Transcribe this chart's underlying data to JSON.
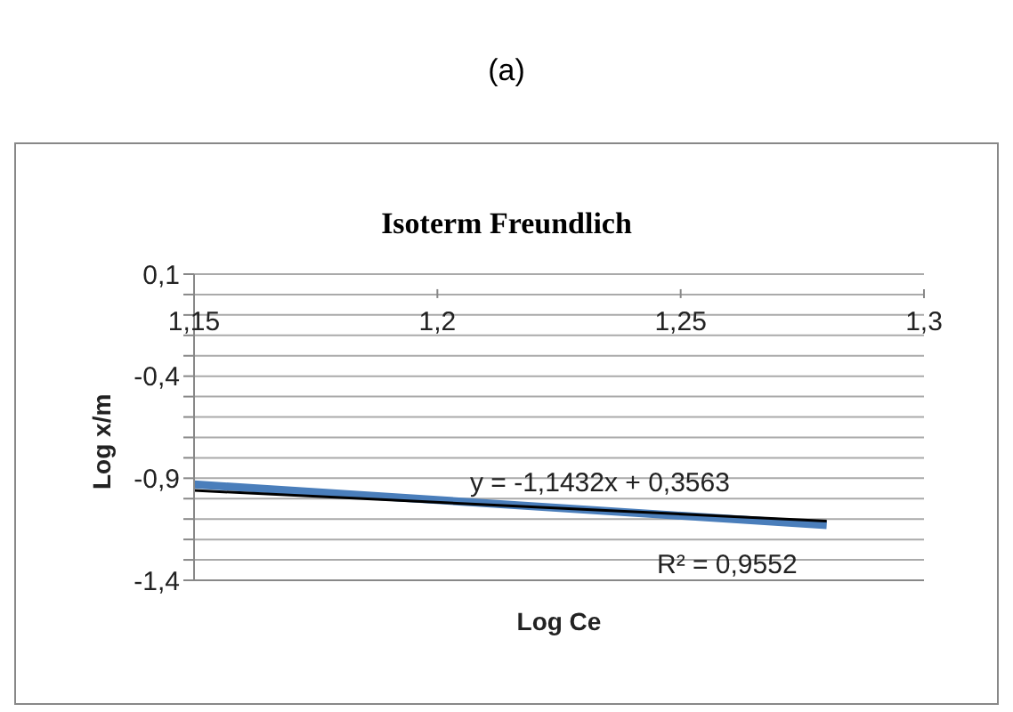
{
  "chart_data": {
    "type": "line",
    "title": "(a)",
    "subtitle": "Isoterm Freundlich",
    "xlabel": "Log Ce",
    "ylabel": "Log x/m",
    "xlim": [
      1.15,
      1.3
    ],
    "xticks": [
      {
        "value": 1.15,
        "label": "1,15"
      },
      {
        "value": 1.2,
        "label": "1,2"
      },
      {
        "value": 1.25,
        "label": "1,25"
      },
      {
        "value": 1.3,
        "label": "1,3"
      }
    ],
    "ylim": [
      -1.4,
      0.1
    ],
    "yticks": [
      {
        "value": -1.4,
        "label": "-1,4"
      },
      {
        "value": -1.3,
        "label": null
      },
      {
        "value": -1.2,
        "label": null
      },
      {
        "value": -1.1,
        "label": null
      },
      {
        "value": -1.0,
        "label": null
      },
      {
        "value": -0.9,
        "label": "-0,9"
      },
      {
        "value": -0.8,
        "label": null
      },
      {
        "value": -0.7,
        "label": null
      },
      {
        "value": -0.6,
        "label": null
      },
      {
        "value": -0.5,
        "label": null
      },
      {
        "value": -0.4,
        "label": "-0,4"
      },
      {
        "value": -0.3,
        "label": null
      },
      {
        "value": -0.2,
        "label": null
      },
      {
        "value": -0.1,
        "label": null
      },
      {
        "value": 0,
        "label": null
      },
      {
        "value": 0.1,
        "label": "0,1"
      }
    ],
    "grid": "y",
    "marker": "none",
    "x": [
      1.15,
      1.28
    ],
    "series": [
      {
        "color": "#4a7ebb",
        "values": [
          -0.93,
          -1.13
        ]
      },
      {
        "type": "line",
        "color": "#000000",
        "values": [
          -0.96,
          -1.11
        ]
      }
    ],
    "annotations": [
      "y = -1,1432x + 0,3563",
      "R² = 0,9552"
    ]
  }
}
